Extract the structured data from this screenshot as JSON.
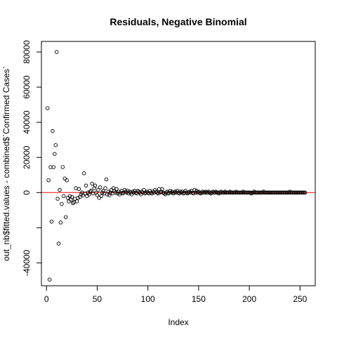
{
  "chart_data": {
    "type": "scatter",
    "title": "Residuals, Negative Binomial",
    "xlabel": "Index",
    "ylabel": "out_nb$fitted.values - combined$`Confirmed Cases`",
    "xlim": [
      -5,
      265
    ],
    "ylim": [
      -53000,
      86000
    ],
    "x_ticks": [
      0,
      50,
      100,
      150,
      200,
      250
    ],
    "y_ticks": [
      -40000,
      -20000,
      0,
      20000,
      40000,
      60000,
      80000
    ],
    "y_tick_labels": [
      "-40000",
      "",
      "0",
      "20000",
      "40000",
      "60000",
      "80000"
    ],
    "reference_line": {
      "y": 0,
      "color": "#ff0000"
    },
    "point_style": "open-circle",
    "grid": false,
    "points": [
      [
        1,
        48000
      ],
      [
        2,
        7000
      ],
      [
        3,
        -49500
      ],
      [
        4,
        14500
      ],
      [
        5,
        -16500
      ],
      [
        6,
        35000
      ],
      [
        7,
        14500
      ],
      [
        8,
        22000
      ],
      [
        9,
        27000
      ],
      [
        10,
        80000
      ],
      [
        11,
        -3500
      ],
      [
        12,
        -29000
      ],
      [
        13,
        1500
      ],
      [
        14,
        -17000
      ],
      [
        15,
        -6500
      ],
      [
        16,
        14500
      ],
      [
        17,
        -2000
      ],
      [
        18,
        8000
      ],
      [
        19,
        -14000
      ],
      [
        20,
        7000
      ],
      [
        21,
        -3000
      ],
      [
        22,
        -5000
      ],
      [
        23,
        -2000
      ],
      [
        24,
        -4000
      ],
      [
        25,
        -2500
      ],
      [
        26,
        -6000
      ],
      [
        27,
        -5500
      ],
      [
        28,
        -3500
      ],
      [
        29,
        2500
      ],
      [
        30,
        -5000
      ],
      [
        31,
        -3000
      ],
      [
        32,
        2000
      ],
      [
        33,
        -2500
      ],
      [
        34,
        -1000
      ],
      [
        35,
        0
      ],
      [
        36,
        -1500
      ],
      [
        37,
        11000
      ],
      [
        38,
        -500
      ],
      [
        39,
        4000
      ],
      [
        40,
        -2000
      ],
      [
        41,
        0
      ],
      [
        42,
        -1000
      ],
      [
        43,
        500
      ],
      [
        44,
        1000
      ],
      [
        45,
        5000
      ],
      [
        46,
        -500
      ],
      [
        47,
        2500
      ],
      [
        48,
        4000
      ],
      [
        49,
        0
      ],
      [
        50,
        -1500
      ],
      [
        51,
        1500
      ],
      [
        52,
        -3000
      ],
      [
        53,
        3000
      ],
      [
        54,
        -2000
      ],
      [
        55,
        0
      ],
      [
        56,
        1000
      ],
      [
        57,
        -500
      ],
      [
        58,
        2500
      ],
      [
        59,
        7500
      ],
      [
        60,
        -1000
      ],
      [
        61,
        500
      ],
      [
        62,
        -1500
      ],
      [
        63,
        0
      ],
      [
        64,
        1500
      ],
      [
        65,
        -500
      ],
      [
        66,
        2500
      ],
      [
        67,
        1000
      ],
      [
        68,
        0
      ],
      [
        69,
        2000
      ],
      [
        70,
        -500
      ],
      [
        71,
        500
      ],
      [
        72,
        -1000
      ],
      [
        73,
        0
      ],
      [
        74,
        1000
      ],
      [
        75,
        -500
      ],
      [
        76,
        0
      ],
      [
        77,
        1500
      ],
      [
        78,
        500
      ],
      [
        79,
        0
      ],
      [
        80,
        1000
      ],
      [
        81,
        -500
      ],
      [
        82,
        500
      ],
      [
        83,
        0
      ],
      [
        84,
        -1000
      ],
      [
        85,
        500
      ],
      [
        86,
        0
      ],
      [
        87,
        1000
      ],
      [
        88,
        0
      ],
      [
        89,
        -500
      ],
      [
        90,
        1000
      ],
      [
        91,
        500
      ],
      [
        92,
        0
      ],
      [
        93,
        -1000
      ],
      [
        94,
        500
      ],
      [
        95,
        0
      ],
      [
        96,
        1500
      ],
      [
        97,
        -500
      ],
      [
        98,
        0
      ],
      [
        99,
        500
      ],
      [
        100,
        0
      ],
      [
        101,
        -500
      ],
      [
        102,
        1000
      ],
      [
        103,
        0
      ],
      [
        104,
        -500
      ],
      [
        105,
        500
      ],
      [
        106,
        0
      ],
      [
        107,
        1500
      ],
      [
        108,
        500
      ],
      [
        109,
        0
      ],
      [
        110,
        -500
      ],
      [
        111,
        2000
      ],
      [
        112,
        0
      ],
      [
        113,
        500
      ],
      [
        114,
        2000
      ],
      [
        115,
        0
      ],
      [
        116,
        -500
      ],
      [
        117,
        -1000
      ],
      [
        118,
        0
      ],
      [
        119,
        500
      ],
      [
        120,
        -500
      ],
      [
        121,
        0
      ],
      [
        122,
        1000
      ],
      [
        123,
        0
      ],
      [
        124,
        500
      ],
      [
        125,
        -500
      ],
      [
        126,
        0
      ],
      [
        127,
        500
      ],
      [
        128,
        0
      ],
      [
        129,
        1000
      ],
      [
        130,
        0
      ],
      [
        131,
        -500
      ],
      [
        132,
        500
      ],
      [
        133,
        0
      ],
      [
        134,
        500
      ],
      [
        135,
        -500
      ],
      [
        136,
        0
      ],
      [
        137,
        1000
      ],
      [
        138,
        0
      ],
      [
        139,
        -500
      ],
      [
        140,
        0
      ],
      [
        141,
        500
      ],
      [
        142,
        0
      ],
      [
        143,
        1000
      ],
      [
        144,
        0
      ],
      [
        145,
        -500
      ],
      [
        146,
        1500
      ],
      [
        147,
        0
      ],
      [
        148,
        1000
      ],
      [
        149,
        0
      ],
      [
        150,
        500
      ],
      [
        151,
        0
      ],
      [
        152,
        -500
      ],
      [
        153,
        0
      ],
      [
        154,
        500
      ],
      [
        155,
        0
      ],
      [
        156,
        0
      ],
      [
        157,
        500
      ],
      [
        158,
        0
      ],
      [
        159,
        0
      ],
      [
        160,
        500
      ],
      [
        161,
        0
      ],
      [
        162,
        -500
      ],
      [
        163,
        0
      ],
      [
        164,
        500
      ],
      [
        165,
        0
      ],
      [
        166,
        0
      ],
      [
        167,
        500
      ],
      [
        168,
        0
      ],
      [
        169,
        0
      ],
      [
        170,
        -500
      ],
      [
        171,
        0
      ],
      [
        172,
        500
      ],
      [
        173,
        0
      ],
      [
        174,
        0
      ],
      [
        175,
        0
      ],
      [
        176,
        500
      ],
      [
        177,
        0
      ],
      [
        178,
        0
      ],
      [
        179,
        0
      ],
      [
        180,
        0
      ],
      [
        181,
        500
      ],
      [
        182,
        0
      ],
      [
        183,
        0
      ],
      [
        184,
        0
      ],
      [
        185,
        0
      ],
      [
        186,
        0
      ],
      [
        187,
        500
      ],
      [
        188,
        0
      ],
      [
        189,
        0
      ],
      [
        190,
        0
      ],
      [
        191,
        0
      ],
      [
        192,
        0
      ],
      [
        193,
        0
      ],
      [
        194,
        500
      ],
      [
        195,
        0
      ],
      [
        196,
        0
      ],
      [
        197,
        0
      ],
      [
        198,
        0
      ],
      [
        199,
        0
      ],
      [
        200,
        0
      ],
      [
        201,
        0
      ],
      [
        202,
        -500
      ],
      [
        203,
        0
      ],
      [
        204,
        0
      ],
      [
        205,
        500
      ],
      [
        206,
        0
      ],
      [
        207,
        0
      ],
      [
        208,
        0
      ],
      [
        209,
        0
      ],
      [
        210,
        0
      ],
      [
        211,
        0
      ],
      [
        212,
        0
      ],
      [
        213,
        0
      ],
      [
        214,
        500
      ],
      [
        215,
        0
      ],
      [
        216,
        0
      ],
      [
        217,
        0
      ],
      [
        218,
        0
      ],
      [
        219,
        0
      ],
      [
        220,
        0
      ],
      [
        221,
        0
      ],
      [
        222,
        0
      ],
      [
        223,
        0
      ],
      [
        224,
        0
      ],
      [
        225,
        0
      ],
      [
        226,
        0
      ],
      [
        227,
        0
      ],
      [
        228,
        0
      ],
      [
        229,
        0
      ],
      [
        230,
        0
      ],
      [
        231,
        0
      ],
      [
        232,
        0
      ],
      [
        233,
        0
      ],
      [
        234,
        0
      ],
      [
        235,
        0
      ],
      [
        236,
        0
      ],
      [
        237,
        0
      ],
      [
        238,
        0
      ],
      [
        239,
        0
      ],
      [
        240,
        500
      ],
      [
        241,
        0
      ],
      [
        242,
        0
      ],
      [
        243,
        0
      ],
      [
        244,
        0
      ],
      [
        245,
        0
      ],
      [
        246,
        0
      ],
      [
        247,
        0
      ],
      [
        248,
        0
      ],
      [
        249,
        0
      ],
      [
        250,
        0
      ],
      [
        251,
        0
      ],
      [
        252,
        0
      ],
      [
        253,
        0
      ],
      [
        254,
        0
      ],
      [
        255,
        0
      ]
    ]
  }
}
